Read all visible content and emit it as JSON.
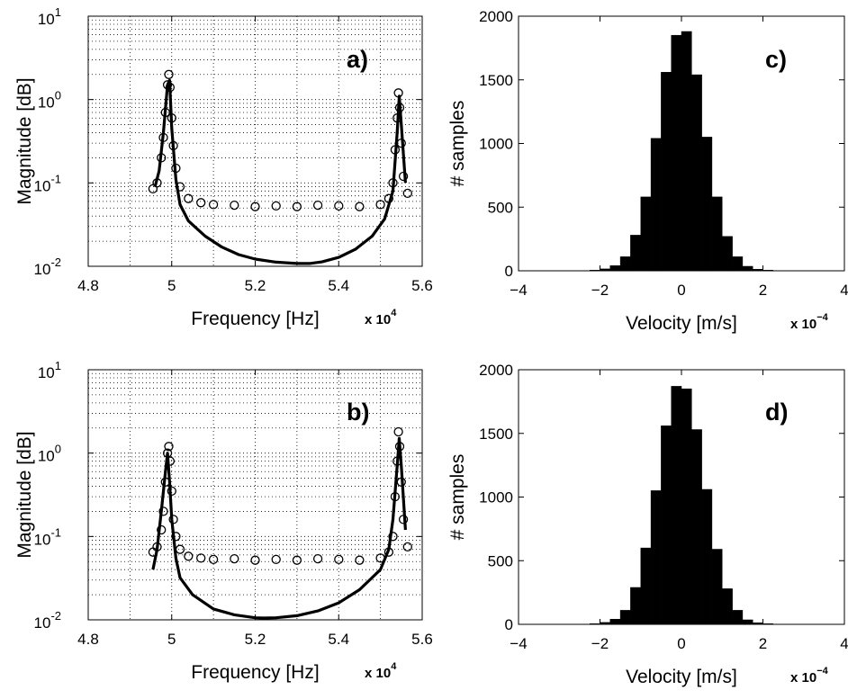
{
  "chart_data": [
    {
      "panel": "a)",
      "type": "line",
      "xlabel": "Frequency [Hz]",
      "ylabel": "Magnitude [dB]",
      "xscale_label": "x 10",
      "xscale_exp": "4",
      "xlim": [
        4.8,
        5.6
      ],
      "ylim": [
        0.01,
        10
      ],
      "yscale": "log",
      "xticks": [
        "4.8",
        "5",
        "5.2",
        "5.4",
        "5.6"
      ],
      "yticks": [
        {
          "base": "10",
          "exp": "-2"
        },
        {
          "base": "10",
          "exp": "-1"
        },
        {
          "base": "10",
          "exp": "0"
        },
        {
          "base": "10",
          "exp": "1"
        }
      ],
      "grid": true,
      "series": [
        {
          "style": "markers-circle",
          "x": [
            4.955,
            4.965,
            4.975,
            4.98,
            4.985,
            4.99,
            4.993,
            4.996,
            5.0,
            5.004,
            5.01,
            5.02,
            5.04,
            5.07,
            5.1,
            5.15,
            5.2,
            5.25,
            5.3,
            5.35,
            5.4,
            5.45,
            5.5,
            5.52,
            5.53,
            5.535,
            5.54,
            5.543,
            5.546,
            5.55,
            5.555,
            5.565
          ],
          "y": [
            0.085,
            0.1,
            0.2,
            0.35,
            0.7,
            1.5,
            2.0,
            1.4,
            0.6,
            0.28,
            0.15,
            0.09,
            0.065,
            0.058,
            0.055,
            0.054,
            0.052,
            0.053,
            0.052,
            0.054,
            0.053,
            0.052,
            0.055,
            0.065,
            0.1,
            0.25,
            0.6,
            1.2,
            0.8,
            0.3,
            0.12,
            0.075
          ]
        },
        {
          "style": "line",
          "x": [
            4.96,
            4.97,
            4.98,
            4.99,
            4.995,
            5.0,
            5.01,
            5.02,
            5.04,
            5.08,
            5.12,
            5.16,
            5.2,
            5.25,
            5.3,
            5.33,
            5.36,
            5.4,
            5.44,
            5.48,
            5.51,
            5.53,
            5.54,
            5.545,
            5.55,
            5.56
          ],
          "y": [
            0.09,
            0.14,
            0.4,
            1.5,
            1.7,
            0.45,
            0.11,
            0.055,
            0.035,
            0.023,
            0.017,
            0.0138,
            0.0122,
            0.0112,
            0.0108,
            0.0108,
            0.0113,
            0.0128,
            0.016,
            0.023,
            0.037,
            0.08,
            0.4,
            1.1,
            0.5,
            0.1
          ]
        }
      ]
    },
    {
      "panel": "b)",
      "type": "line",
      "xlabel": "Frequency [Hz]",
      "ylabel": "Magnitude [dB]",
      "xscale_label": "x 10",
      "xscale_exp": "4",
      "xlim": [
        4.8,
        5.6
      ],
      "ylim": [
        0.01,
        10
      ],
      "yscale": "log",
      "xticks": [
        "4.8",
        "5",
        "5.2",
        "5.4",
        "5.6"
      ],
      "yticks": [
        {
          "base": "10",
          "exp": "-2"
        },
        {
          "base": "10",
          "exp": "-1"
        },
        {
          "base": "10",
          "exp": "0"
        },
        {
          "base": "10",
          "exp": "1"
        }
      ],
      "grid": true,
      "series": [
        {
          "style": "markers-circle",
          "x": [
            4.955,
            4.965,
            4.975,
            4.98,
            4.985,
            4.99,
            4.993,
            4.996,
            5.0,
            5.004,
            5.01,
            5.02,
            5.04,
            5.07,
            5.1,
            5.15,
            5.2,
            5.25,
            5.3,
            5.35,
            5.4,
            5.45,
            5.5,
            5.52,
            5.53,
            5.535,
            5.54,
            5.543,
            5.546,
            5.55,
            5.555,
            5.565
          ],
          "y": [
            0.065,
            0.075,
            0.12,
            0.2,
            0.45,
            1.0,
            1.2,
            0.8,
            0.35,
            0.16,
            0.1,
            0.07,
            0.058,
            0.055,
            0.053,
            0.054,
            0.052,
            0.053,
            0.052,
            0.054,
            0.053,
            0.052,
            0.055,
            0.065,
            0.1,
            0.3,
            0.8,
            1.8,
            1.2,
            0.45,
            0.16,
            0.075
          ]
        },
        {
          "style": "line",
          "x": [
            4.955,
            4.965,
            4.975,
            4.985,
            4.99,
            4.995,
            5.0,
            5.01,
            5.02,
            5.05,
            5.1,
            5.15,
            5.2,
            5.22,
            5.25,
            5.3,
            5.35,
            5.4,
            5.45,
            5.5,
            5.52,
            5.53,
            5.54,
            5.545,
            5.55,
            5.56
          ],
          "y": [
            0.04,
            0.07,
            0.2,
            0.6,
            1.0,
            0.45,
            0.16,
            0.055,
            0.032,
            0.02,
            0.0135,
            0.0115,
            0.0106,
            0.0105,
            0.0106,
            0.0112,
            0.0128,
            0.016,
            0.023,
            0.04,
            0.07,
            0.16,
            0.7,
            1.5,
            0.7,
            0.12
          ]
        }
      ]
    },
    {
      "panel": "c)",
      "type": "bar",
      "xlabel": "Velocity [m/s]",
      "ylabel": "# samples",
      "xscale_label": "x 10",
      "xscale_exp": "−4",
      "xlim": [
        -4,
        4
      ],
      "ylim": [
        0,
        2000
      ],
      "xticks": [
        "−4",
        "−2",
        "0",
        "2",
        "4"
      ],
      "yticks": [
        "0",
        "500",
        "1000",
        "1500",
        "2000"
      ],
      "grid": false,
      "bin_centers": [
        -2.125,
        -1.875,
        -1.625,
        -1.375,
        -1.125,
        -0.875,
        -0.625,
        -0.375,
        -0.125,
        0.125,
        0.375,
        0.625,
        0.875,
        1.125,
        1.375,
        1.625,
        1.875,
        2.125
      ],
      "values": [
        5,
        15,
        40,
        110,
        280,
        580,
        1040,
        1560,
        1850,
        1880,
        1540,
        1050,
        580,
        270,
        110,
        35,
        12,
        5
      ]
    },
    {
      "panel": "d)",
      "type": "bar",
      "xlabel": "Velocity [m/s]",
      "ylabel": "# samples",
      "xscale_label": "x 10",
      "xscale_exp": "−4",
      "xlim": [
        -4,
        4
      ],
      "ylim": [
        0,
        2000
      ],
      "xticks": [
        "−4",
        "−2",
        "0",
        "2",
        "4"
      ],
      "yticks": [
        "0",
        "500",
        "1000",
        "1500",
        "2000"
      ],
      "grid": false,
      "bin_centers": [
        -2.125,
        -1.875,
        -1.625,
        -1.375,
        -1.125,
        -0.875,
        -0.625,
        -0.375,
        -0.125,
        0.125,
        0.375,
        0.625,
        0.875,
        1.125,
        1.375,
        1.625,
        1.875,
        2.125
      ],
      "values": [
        5,
        15,
        40,
        110,
        290,
        600,
        1050,
        1560,
        1870,
        1850,
        1530,
        1060,
        590,
        280,
        110,
        35,
        12,
        5
      ]
    }
  ]
}
